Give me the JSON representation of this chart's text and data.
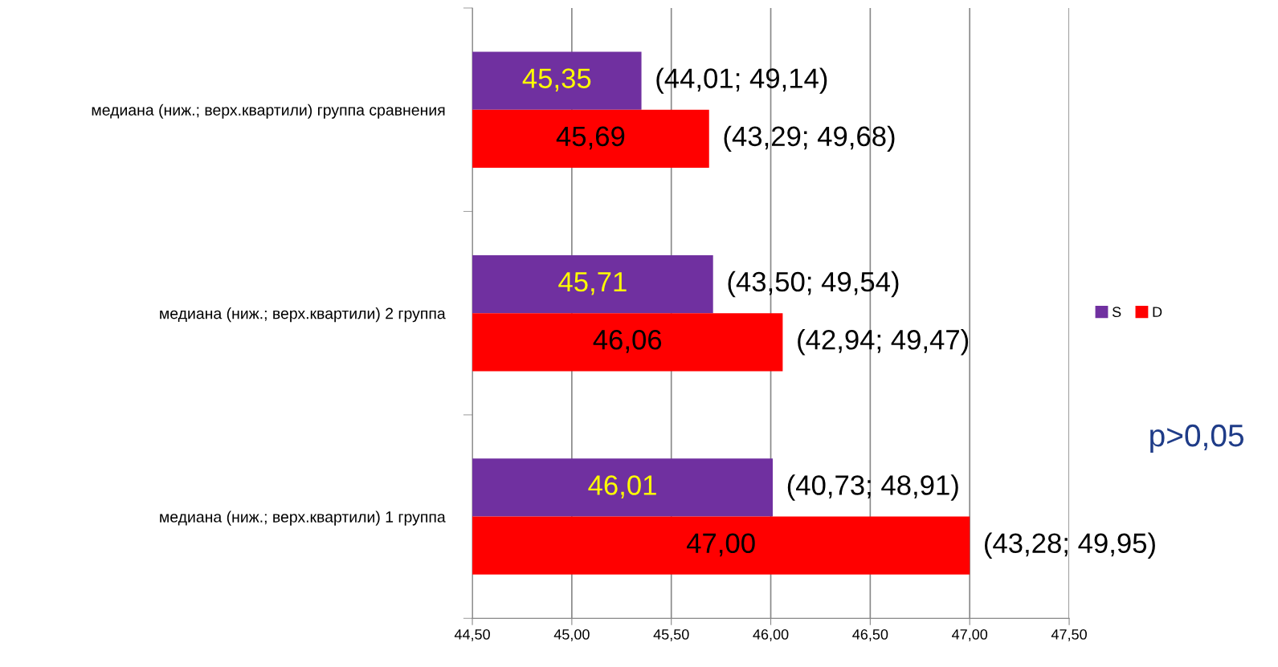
{
  "chart_data": {
    "type": "bar",
    "orientation": "horizontal",
    "categories": [
      "медиана (ниж.; верх.квартили) группа сравнения",
      "медиана (ниж.; верх.квартили) 2 группа",
      "медиана (ниж.; верх.квартили) 1 группа"
    ],
    "series": [
      {
        "name": "S",
        "color": "#7030a0",
        "values": [
          45.35,
          45.71,
          46.01
        ],
        "value_labels": [
          "45,35",
          "45,71",
          "46,01"
        ]
      },
      {
        "name": "D",
        "color": "#ff0000",
        "values": [
          45.69,
          46.06,
          47.0
        ],
        "value_labels": [
          "45,69",
          "46,06",
          "47,00"
        ]
      }
    ],
    "xlim": [
      44.5,
      47.5
    ],
    "xticks": [
      {
        "value": 44.5,
        "label": "44,50"
      },
      {
        "value": 45.0,
        "label": "45,00"
      },
      {
        "value": 45.5,
        "label": "45,50"
      },
      {
        "value": 46.0,
        "label": "46,00"
      },
      {
        "value": 46.5,
        "label": "46,50"
      },
      {
        "value": 47.0,
        "label": "47,00"
      },
      {
        "value": 47.5,
        "label": "47,50"
      }
    ],
    "grid": "x",
    "legend": "right",
    "annotations": [
      "(44,01; 49,14)",
      "(43,29; 49,68)",
      "(43,50; 49,54)",
      "(42,94; 49,47)",
      "(40,73; 48,91)",
      "(43,28; 49,95)",
      "p>0,05"
    ]
  }
}
